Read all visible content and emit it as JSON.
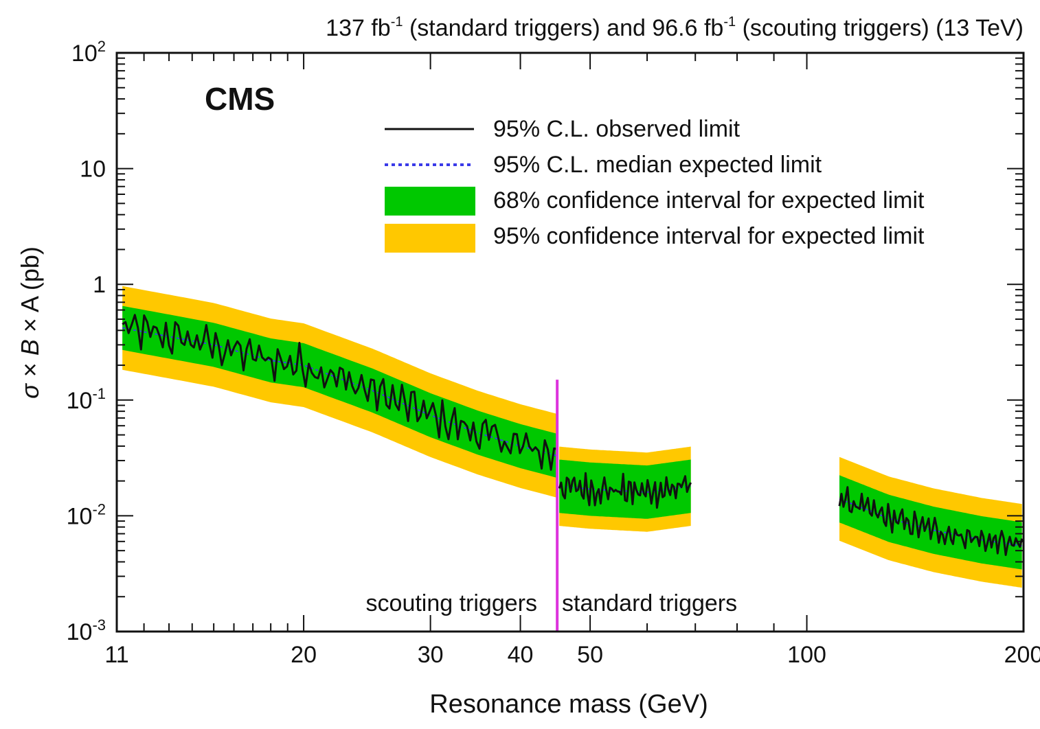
{
  "chart_data": {
    "type": "line",
    "lumi_label": {
      "part1": "137 fb",
      "sup1": "-1",
      "part2": " (standard triggers) and 96.6 fb",
      "sup2": "-1",
      "part3": " (scouting triggers) (13 TeV)"
    },
    "experiment_label": "CMS",
    "xlabel": "Resonance mass (GeV)",
    "ylabel": {
      "sigma": "σ",
      "times1": " × ",
      "B": "B",
      "times2": " × ",
      "rest": "A (pb)"
    },
    "xscale": "log",
    "yscale": "log",
    "xlim": [
      11,
      200
    ],
    "ylim": [
      0.001,
      100
    ],
    "x_ticks": [
      {
        "value": 11,
        "label": "11"
      },
      {
        "value": 20,
        "label": "20"
      },
      {
        "value": 30,
        "label": "30"
      },
      {
        "value": 40,
        "label": "40"
      },
      {
        "value": 50,
        "label": "50"
      },
      {
        "value": 100,
        "label": "100"
      },
      {
        "value": 200,
        "label": "200"
      }
    ],
    "y_ticks": [
      {
        "value": 100,
        "base": "10",
        "exp": "2"
      },
      {
        "value": 10,
        "base": "10",
        "exp": ""
      },
      {
        "value": 1,
        "base": "1",
        "exp": ""
      },
      {
        "value": 0.1,
        "base": "10",
        "exp": "-1"
      },
      {
        "value": 0.01,
        "base": "10",
        "exp": "-2"
      },
      {
        "value": 0.001,
        "base": "10",
        "exp": "-3"
      }
    ],
    "legend": [
      {
        "label": "95% C.L. observed limit",
        "style": "solid-line",
        "color": "#111111"
      },
      {
        "label": "95% C.L. median expected limit",
        "style": "dotted-line",
        "color": "#3a3ae8"
      },
      {
        "label": "68% confidence interval for expected limit",
        "style": "band",
        "color": "#00c800"
      },
      {
        "label": "95% confidence interval for expected limit",
        "style": "band",
        "color": "#ffc800"
      }
    ],
    "divider": {
      "x": 45,
      "color": "#dd33dd",
      "y_top": 0.15,
      "left_label": "scouting triggers",
      "right_label": "standard triggers"
    },
    "colors": {
      "band68": "#00c800",
      "band95": "#ffc800",
      "observed": "#111111",
      "expected": "#3a3ae8"
    },
    "segments": [
      {
        "name": "scouting",
        "x_range": [
          11.2,
          45
        ],
        "expected_knots": [
          [
            11.2,
            0.42
          ],
          [
            15,
            0.3
          ],
          [
            18,
            0.22
          ],
          [
            20,
            0.2
          ],
          [
            25,
            0.12
          ],
          [
            30,
            0.074
          ],
          [
            35,
            0.052
          ],
          [
            40,
            0.04
          ],
          [
            45,
            0.033
          ]
        ],
        "band68_factor": 1.55,
        "band95_factor": 2.3,
        "observed_amplitude": 0.95,
        "observed_points": 140
      },
      {
        "name": "standard-low",
        "x_range": [
          45.3,
          69
        ],
        "expected_knots": [
          [
            45.3,
            0.018
          ],
          [
            50,
            0.017
          ],
          [
            60,
            0.016
          ],
          [
            69,
            0.018
          ]
        ],
        "band68_factor": 1.7,
        "band95_factor": 2.2,
        "observed_amplitude": 0.6,
        "observed_points": 70
      },
      {
        "name": "standard-high",
        "x_range": [
          111,
          199
        ],
        "expected_knots": [
          [
            111,
            0.014
          ],
          [
            130,
            0.0095
          ],
          [
            150,
            0.0075
          ],
          [
            175,
            0.0062
          ],
          [
            199,
            0.0055
          ]
        ],
        "band68_factor": 1.6,
        "band95_factor": 2.3,
        "observed_amplitude": 0.6,
        "observed_points": 90
      }
    ]
  }
}
